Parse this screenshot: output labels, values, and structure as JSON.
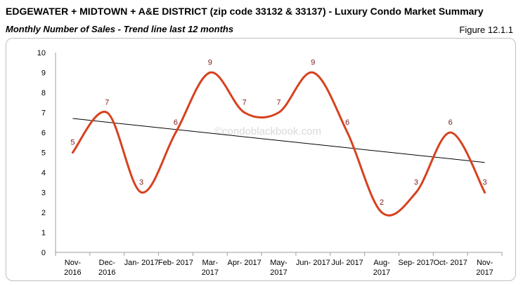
{
  "header": {
    "title": "EDGEWATER + MIDTOWN + A&E DISTRICT (zip code 33132 & 33137) - Luxury Condo Market Summary",
    "subtitle": "Monthly Number of Sales - Trend line last 12 months",
    "figure": "Figure 12.1.1"
  },
  "watermark": "©condoblackbook.com",
  "colors": {
    "series": "#d6421e",
    "trend": "#000000",
    "label": "#7b1c1c",
    "axis": "#9e9e9e"
  },
  "chart_data": {
    "type": "line",
    "smooth": true,
    "categories": [
      [
        "Nov-",
        "2016"
      ],
      [
        "Dec-",
        "2016"
      ],
      [
        "Jan- 2017"
      ],
      [
        "Feb- 2017"
      ],
      [
        "Mar-",
        "2017"
      ],
      [
        "Apr- 2017"
      ],
      [
        "May-",
        "2017"
      ],
      [
        "Jun- 2017"
      ],
      [
        "Jul- 2017"
      ],
      [
        "Aug-",
        "2017"
      ],
      [
        "Sep- 2017"
      ],
      [
        "Oct- 2017"
      ],
      [
        "Nov-",
        "2017"
      ]
    ],
    "series": [
      {
        "values": [
          5,
          7,
          3,
          6,
          9,
          7,
          7,
          9,
          6,
          2,
          3,
          6,
          3
        ]
      }
    ],
    "trendline": {
      "type": "linear",
      "start": 6.7,
      "end": 4.5
    },
    "ylim": [
      0,
      10
    ],
    "yticks": [
      0,
      1,
      2,
      3,
      4,
      5,
      6,
      7,
      8,
      9,
      10
    ],
    "xlabel": "",
    "ylabel": "",
    "legend": "none",
    "grid": false,
    "data_labels": true
  }
}
